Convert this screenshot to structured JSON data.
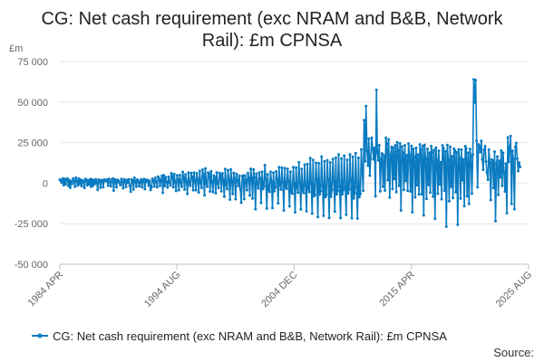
{
  "chart_data": {
    "type": "line",
    "title_lines": [
      "CG: Net cash requirement (exc NRAM and B&B, Network",
      "Rail): £m CPNSA"
    ],
    "y_unit": "£m",
    "ylim": [
      -50000,
      75000
    ],
    "y_ticks": [
      -50000,
      -25000,
      0,
      25000,
      50000,
      75000
    ],
    "y_tick_labels": [
      "-50 000",
      "-25 000",
      "0",
      "25 000",
      "50 000",
      "75 000"
    ],
    "x_range": [
      "1984-04",
      "2025-08"
    ],
    "x_ticks": [
      "1984-04",
      "1994-08",
      "2004-12",
      "2015-04",
      "2025-08"
    ],
    "x_tick_labels": [
      "1984 APR",
      "1994 AUG",
      "2004 DEC",
      "2015 APR",
      "2025 AUG"
    ],
    "grid": "horizontal",
    "legend_position": "bottom",
    "series": [
      {
        "name": "CG: Net cash requirement (exc NRAM and B&B, Network Rail): £m CPNSA",
        "color": "#0a7bc1",
        "frequency": "monthly",
        "start": "1984-04",
        "values": [
          2200,
          1500,
          300,
          2800,
          -1200,
          2600,
          -800,
          2300,
          2900,
          -1600,
          1900,
          -2800,
          1200,
          -400,
          2800,
          1800,
          -2200,
          3400,
          1200,
          -1400,
          2800,
          -500,
          2200,
          -1800,
          1600,
          1100,
          -2900,
          2600,
          2100,
          -1300,
          1700,
          -800,
          2400,
          -2100,
          2400,
          -1700,
          1800,
          -500,
          2400,
          600,
          -4100,
          2200,
          1800,
          -2800,
          1900,
          1500,
          -2400,
          2300,
          1500,
          1300,
          2200,
          -1500,
          2600,
          800,
          -1900,
          2300,
          2800,
          -4500,
          2400,
          1600,
          -2500,
          2000,
          1500,
          300,
          -1200,
          2500,
          900,
          -3100,
          2400,
          1300,
          -2300,
          2000,
          300,
          2300,
          -1600,
          -5200,
          2200,
          1700,
          -3800,
          3300,
          1100,
          -2200,
          2200,
          1100,
          -1900,
          800,
          2300,
          -2500,
          1500,
          2500,
          -3600,
          2100,
          1000,
          1900,
          -1500,
          1400,
          -4200,
          -2500,
          2700,
          1600,
          -2000,
          3300,
          800,
          -2400,
          4100,
          2900,
          -1600,
          1600,
          4600,
          -5900,
          4900,
          -1700,
          3600,
          700,
          -2600,
          3900,
          500,
          -1300,
          6100,
          4300,
          -2500,
          5700,
          800,
          -4800,
          4800,
          2200,
          -4300,
          4900,
          400,
          -2100,
          6900,
          3600,
          -3900,
          5400,
          1100,
          -6600,
          6500,
          -400,
          -1700,
          6300,
          3900,
          -4300,
          6500,
          1500,
          -4400,
          6100,
          2000,
          -5700,
          7500,
          200,
          -2900,
          8300,
          5600,
          -7500,
          9100,
          -200,
          -2100,
          6500,
          5800,
          -5100,
          7300,
          900,
          -5400,
          4700,
          3500,
          -6200,
          6600,
          -200,
          -3000,
          6200,
          4700,
          -4900,
          6000,
          1900,
          -8300,
          8700,
          -1000,
          -3600,
          8000,
          2300,
          -10100,
          8500,
          1200,
          -6600,
          6300,
          3000,
          -9800,
          5700,
          1800,
          -1800,
          4500,
          -3600,
          -12000,
          4300,
          4700,
          -9800,
          4700,
          1900,
          -4300,
          6200,
          3100,
          -7600,
          8800,
          3300,
          -9400,
          8400,
          3600,
          -16000,
          5800,
          -200,
          -3200,
          6500,
          2900,
          -12200,
          7000,
          -3500,
          -2000,
          11100,
          2300,
          -15600,
          5400,
          -4100,
          -5300,
          7000,
          1000,
          -15300,
          6400,
          -4900,
          -2500,
          7200,
          2100,
          -12400,
          9900,
          -1300,
          -3900,
          9500,
          800,
          -16800,
          9200,
          -2000,
          -3400,
          8800,
          1300,
          -14300,
          7000,
          -5500,
          -6500,
          9800,
          -500,
          -17900,
          9600,
          -2500,
          -5800,
          12900,
          800,
          -16200,
          8700,
          -4400,
          -6100,
          11400,
          -1100,
          -17300,
          11800,
          -3700,
          -5400,
          15400,
          -200,
          -18700,
          14300,
          -8000,
          -7300,
          12500,
          2400,
          -20800,
          12300,
          -7000,
          -4900,
          16400,
          -1500,
          -20100,
          13400,
          -8600,
          -7100,
          14100,
          2100,
          -21400,
          12800,
          -8300,
          -4100,
          14900,
          900,
          -17400,
          15600,
          -6900,
          -4800,
          17700,
          -2200,
          -21500,
          15200,
          -6800,
          -4200,
          16900,
          -2700,
          -19400,
          14400,
          -6300,
          -3800,
          17700,
          1600,
          -21600,
          16300,
          -9400,
          -6100,
          18500,
          -2500,
          -21800,
          15600,
          -8600,
          -6600,
          20700,
          7800,
          -4700,
          38900,
          13500,
          47500,
          19900,
          10800,
          27400,
          4700,
          15400,
          28000,
          21100,
          14700,
          21900,
          -8100,
          57600,
          19000,
          14000,
          23400,
          -5000,
          14700,
          18300,
          -2100,
          17100,
          -4500,
          28000,
          24500,
          1900,
          27000,
          -8800,
          17400,
          22300,
          -3600,
          21900,
          2600,
          23300,
          -5500,
          25200,
          20100,
          -1600,
          24500,
          -16800,
          22600,
          18700,
          -4100,
          23300,
          1400,
          17200,
          -4600,
          24400,
          17400,
          -5100,
          23000,
          -17900,
          21100,
          15900,
          -8700,
          21700,
          -1200,
          17500,
          -6900,
          23900,
          20600,
          -6800,
          22900,
          -19800,
          23600,
          15200,
          -9600,
          21100,
          -1000,
          18800,
          -5700,
          22800,
          19000,
          -8300,
          20400,
          -22000,
          21800,
          14300,
          -6500,
          20000,
          -800,
          13000,
          -9900,
          23200,
          21500,
          -4600,
          19600,
          -26800,
          23500,
          14400,
          -11100,
          22400,
          -2200,
          16500,
          -9100,
          21200,
          20200,
          -5600,
          19100,
          -25600,
          20800,
          15200,
          -9500,
          20600,
          1800,
          14700,
          -14100,
          22800,
          21400,
          -8000,
          18800,
          -12800,
          21000,
          16100,
          -6400,
          17600,
          64000,
          49700,
          63500,
          26000,
          -2500,
          23900,
          22500,
          19200,
          26100,
          14700,
          8300,
          20600,
          22800,
          13400,
          6600,
          2100,
          20700,
          12500,
          -10400,
          14500,
          13900,
          -3000,
          19400,
          -23400,
          12300,
          16400,
          -7200,
          13800,
          3600,
          20100,
          -1600,
          18700,
          6800,
          -5100,
          12100,
          -18500,
          28200,
          13100,
          22000,
          29000,
          -12700,
          20000,
          14800,
          -16000,
          22400,
          24800,
          15100,
          7500,
          12600,
          10000
        ]
      }
    ]
  },
  "legend": {
    "label": "CG: Net cash requirement (exc NRAM and B&B, Network Rail): £m CPNSA"
  },
  "source_label": "Source:"
}
